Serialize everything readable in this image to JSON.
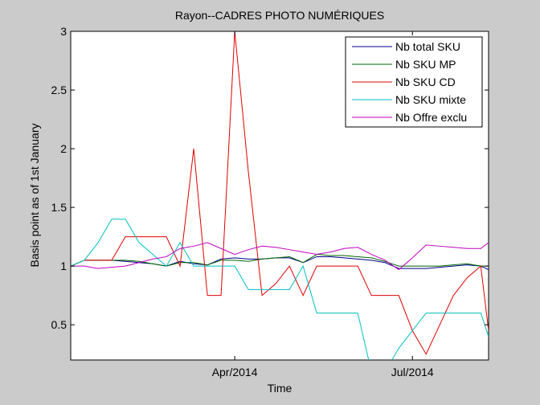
{
  "chart_data": {
    "type": "line",
    "title": "Rayon--CADRES PHOTO NUMÉRIQUES",
    "xlabel": "Time",
    "ylabel": "Basis point as of 1st January",
    "x": [
      7,
      14,
      21,
      28,
      35,
      42,
      49,
      56,
      63,
      70,
      77,
      84,
      91,
      98,
      105,
      112,
      119,
      126,
      133,
      140,
      147,
      154,
      161,
      168,
      175,
      182,
      189,
      196,
      203,
      210,
      217,
      221
    ],
    "xlim": [
      7,
      221
    ],
    "xticks": [
      {
        "value": 91,
        "label": "Apr/2014"
      },
      {
        "value": 182,
        "label": "Jul/2014"
      }
    ],
    "ylim": [
      0.2,
      3
    ],
    "yticks": [
      0.5,
      1,
      1.5,
      2,
      2.5,
      3
    ],
    "grid": false,
    "legend": "upper right",
    "series": [
      {
        "name": "Nb total SKU",
        "color": "#00008b",
        "values": [
          1.0,
          1.05,
          1.05,
          1.05,
          1.04,
          1.03,
          1.02,
          1.0,
          1.04,
          1.02,
          1.01,
          1.06,
          1.07,
          1.06,
          1.06,
          1.07,
          1.07,
          1.03,
          1.08,
          1.08,
          1.07,
          1.06,
          1.05,
          1.03,
          0.98,
          0.98,
          0.98,
          0.99,
          1.0,
          1.01,
          1.0,
          0.97
        ]
      },
      {
        "name": "Nb SKU MP",
        "color": "#006400",
        "values": [
          1.0,
          1.05,
          1.05,
          1.05,
          1.05,
          1.04,
          1.02,
          1.0,
          1.03,
          1.03,
          1.01,
          1.05,
          1.05,
          1.04,
          1.06,
          1.07,
          1.08,
          1.03,
          1.1,
          1.09,
          1.09,
          1.08,
          1.07,
          1.04,
          1.0,
          1.0,
          1.0,
          1.0,
          1.01,
          1.02,
          1.0,
          1.0
        ]
      },
      {
        "name": "Nb SKU CD",
        "color": "#e00000",
        "values": [
          1.0,
          1.05,
          1.05,
          1.05,
          1.25,
          1.25,
          1.25,
          1.25,
          1.0,
          2.0,
          0.75,
          0.75,
          3.0,
          1.8,
          0.75,
          0.85,
          1.0,
          0.75,
          1.0,
          1.0,
          1.0,
          1.0,
          0.75,
          0.75,
          0.75,
          0.45,
          0.25,
          0.5,
          0.75,
          0.9,
          1.0,
          0.45
        ]
      },
      {
        "name": "Nb SKU mixte",
        "color": "#00bfbf",
        "values": [
          1.0,
          1.05,
          1.2,
          1.4,
          1.4,
          1.2,
          1.1,
          1.0,
          1.2,
          1.0,
          1.0,
          1.0,
          1.0,
          0.8,
          0.8,
          0.8,
          0.8,
          1.0,
          0.6,
          0.6,
          0.6,
          0.6,
          0.1,
          0.1,
          0.3,
          0.45,
          0.6,
          0.6,
          0.6,
          0.6,
          0.6,
          0.4
        ]
      },
      {
        "name": "Nb Offre exclu",
        "color": "#bf00bf",
        "values": [
          1.0,
          1.0,
          0.98,
          0.99,
          1.0,
          1.03,
          1.06,
          1.08,
          1.15,
          1.17,
          1.2,
          1.15,
          1.1,
          1.14,
          1.17,
          1.16,
          1.14,
          1.12,
          1.1,
          1.12,
          1.15,
          1.16,
          1.1,
          1.05,
          0.97,
          1.07,
          1.18,
          1.17,
          1.16,
          1.15,
          1.15,
          1.2
        ]
      }
    ]
  }
}
